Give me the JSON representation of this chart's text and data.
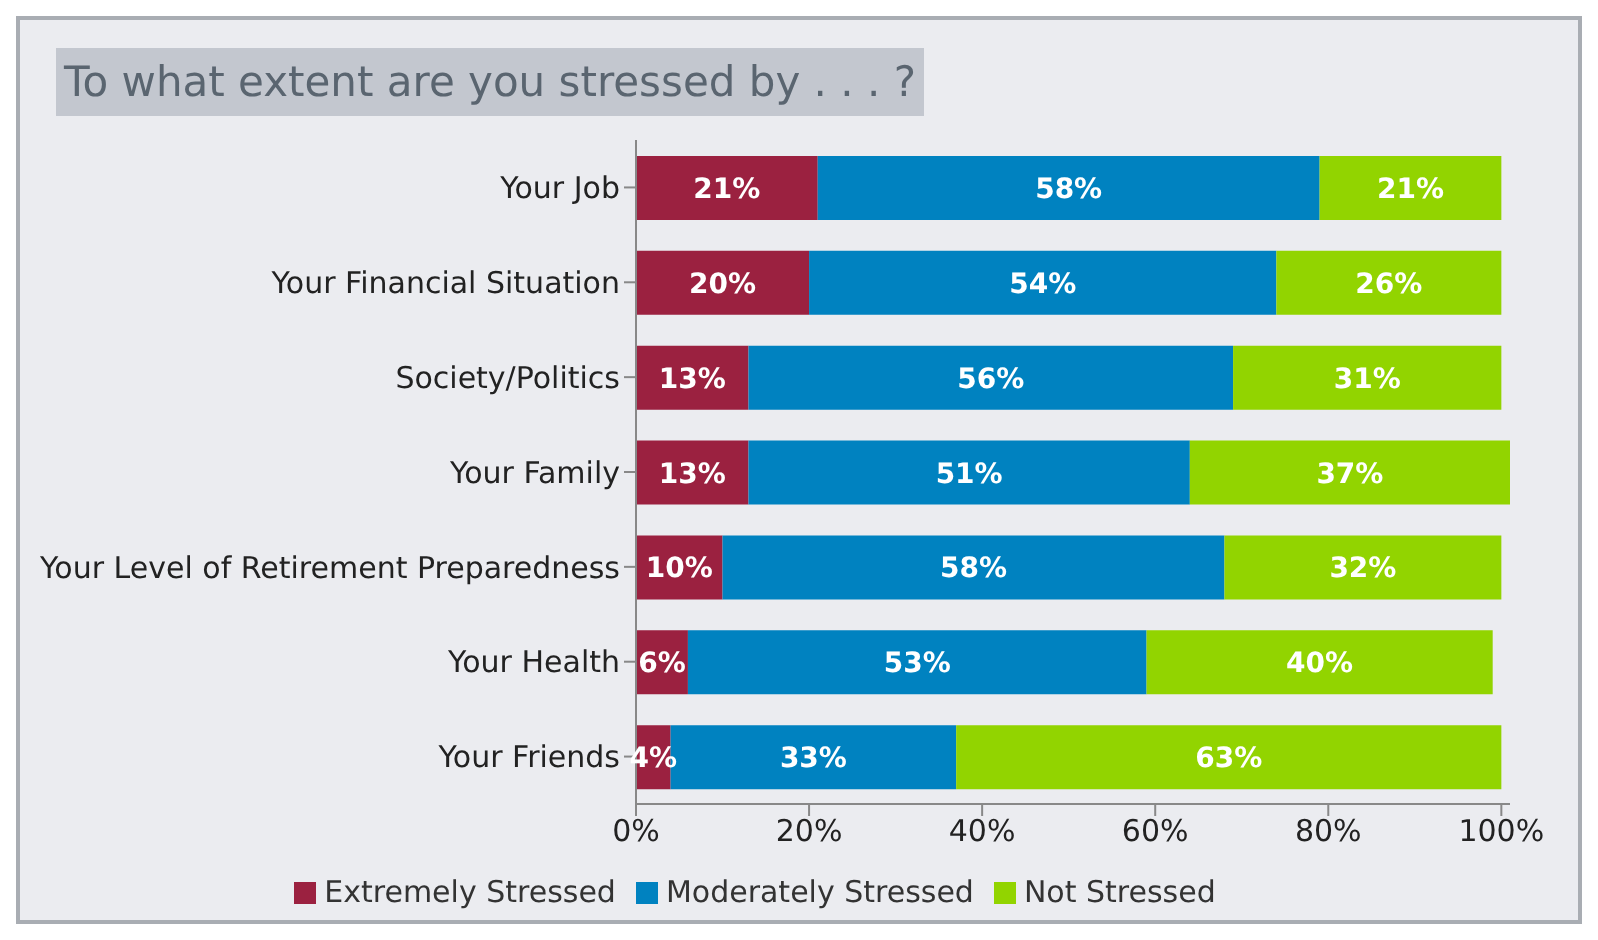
{
  "chart_data": {
    "type": "bar",
    "orientation": "horizontal",
    "stacked": true,
    "title": "To what extent are you stressed by . . . ?",
    "categories": [
      "Your Job",
      "Your Financial Situation",
      "Society/Politics",
      "Your Family",
      "Your Level of Retirement Preparedness",
      "Your Health",
      "Your Friends"
    ],
    "series": [
      {
        "name": "Extremely Stressed",
        "color": "#9b2140",
        "values": [
          21,
          20,
          13,
          13,
          10,
          6,
          4
        ],
        "value_labels": [
          "21%",
          "20%",
          "13%",
          "13%",
          "10%",
          "6%",
          "4%"
        ]
      },
      {
        "name": "Moderately Stressed",
        "color": "#0082c0",
        "values": [
          58,
          54,
          56,
          51,
          58,
          53,
          33
        ],
        "value_labels": [
          "58%",
          "54%",
          "56%",
          "51%",
          "58%",
          "53%",
          "33%"
        ]
      },
      {
        "name": "Not Stressed",
        "color": "#92d400",
        "values": [
          21,
          26,
          31,
          37,
          32,
          40,
          63
        ],
        "value_labels": [
          "21%",
          "26%",
          "31%",
          "37%",
          "32%",
          "40%",
          "63%"
        ]
      }
    ],
    "xlim": [
      0,
      101
    ],
    "xticks": [
      {
        "value": 0,
        "label": "0%"
      },
      {
        "value": 20,
        "label": "20%"
      },
      {
        "value": 40,
        "label": "40%"
      },
      {
        "value": 60,
        "label": "60%"
      },
      {
        "value": 80,
        "label": "80%"
      },
      {
        "value": 100,
        "label": "100%"
      }
    ],
    "grid": false,
    "legend": "bottom"
  }
}
